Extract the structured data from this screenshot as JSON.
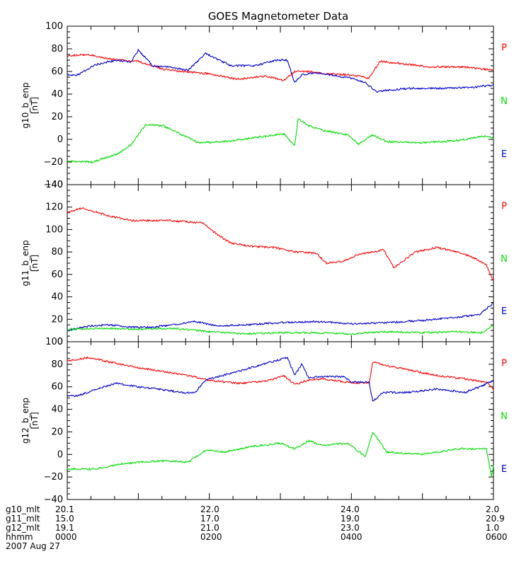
{
  "chart_data": {
    "type": "line",
    "title": "GOES Magnetometer Data",
    "x_range_hours": [
      0,
      6
    ],
    "grid": false,
    "legend": "right-of-each-panel",
    "colors": {
      "P": "#ff0000",
      "N": "#00dd00",
      "E": "#0000cc"
    },
    "panels": [
      {
        "ylabel": "g10_b_enp",
        "units": "[nT]",
        "ylim": [
          -40,
          100
        ],
        "yticks": [
          "−40",
          "−20",
          "0",
          "20",
          "40",
          "60",
          "80",
          "100"
        ],
        "ytick_values": [
          -40,
          -20,
          0,
          20,
          40,
          60,
          80,
          100
        ],
        "series": [
          {
            "name": "P",
            "x": [
              0.0,
              0.3,
              0.6,
              1.0,
              1.35,
              1.6,
              2.0,
              2.4,
              2.8,
              3.05,
              3.2,
              3.4,
              3.6,
              4.0,
              4.25,
              4.4,
              4.7,
              5.1,
              5.6,
              6.0
            ],
            "y": [
              74,
              75,
              71,
              69,
              62,
              60,
              58,
              53,
              56,
              52,
              60,
              60,
              58,
              57,
              54,
              69,
              67,
              64,
              64,
              61
            ]
          },
          {
            "name": "N",
            "x": [
              0.0,
              0.35,
              0.7,
              0.9,
              1.1,
              1.35,
              1.55,
              1.85,
              2.2,
              2.7,
              3.05,
              3.2,
              3.25,
              3.4,
              3.6,
              3.95,
              4.1,
              4.3,
              4.5,
              5.0,
              5.5,
              5.85,
              6.0
            ],
            "y": [
              -19,
              -20,
              -13,
              -5,
              13,
              12,
              6,
              -3,
              -2,
              2,
              5,
              -6,
              18,
              12,
              8,
              4,
              -4,
              4,
              -2,
              -3,
              -1,
              3,
              1
            ]
          },
          {
            "name": "E",
            "x": [
              0.0,
              0.15,
              0.4,
              0.7,
              0.9,
              1.0,
              1.2,
              1.4,
              1.7,
              1.95,
              2.3,
              2.65,
              2.95,
              3.1,
              3.2,
              3.3,
              3.5,
              3.7,
              4.0,
              4.2,
              4.35,
              4.45,
              4.8,
              5.3,
              5.7,
              6.0
            ],
            "y": [
              57,
              57,
              66,
              70,
              68,
              79,
              65,
              64,
              61,
              76,
              65,
              65,
              70,
              70,
              50,
              57,
              59,
              57,
              54,
              50,
              42,
              43,
              45,
              45,
              46,
              48
            ]
          }
        ]
      },
      {
        "ylabel": "g11_b_enp",
        "units": "[nT]",
        "ylim": [
          0,
          140
        ],
        "yticks": [
          "0",
          "20",
          "40",
          "60",
          "80",
          "100",
          "120",
          "140"
        ],
        "ytick_values": [
          0,
          20,
          40,
          60,
          80,
          100,
          120,
          140
        ],
        "series": [
          {
            "name": "P",
            "x": [
              0.0,
              0.2,
              0.6,
              0.9,
              1.4,
              1.9,
              2.1,
              2.3,
              2.6,
              2.9,
              3.2,
              3.5,
              3.65,
              3.9,
              4.1,
              4.3,
              4.45,
              4.6,
              4.9,
              5.2,
              5.5,
              5.75,
              5.9,
              6.0
            ],
            "y": [
              115,
              119,
              112,
              108,
              108,
              106,
              96,
              88,
              85,
              84,
              80,
              79,
              70,
              72,
              78,
              80,
              82,
              66,
              80,
              84,
              80,
              74,
              68,
              54
            ]
          },
          {
            "name": "E",
            "x": [
              0.0,
              0.3,
              0.6,
              0.9,
              1.2,
              1.5,
              1.8,
              2.1,
              2.5,
              3.0,
              3.5,
              4.0,
              4.5,
              5.0,
              5.5,
              5.8,
              5.95,
              6.0
            ],
            "y": [
              10,
              14,
              15,
              13,
              13,
              15,
              18,
              14,
              15,
              17,
              18,
              16,
              17,
              19,
              22,
              24,
              32,
              34
            ]
          },
          {
            "name": "N",
            "x": [
              0.0,
              0.5,
              1.0,
              1.5,
              2.0,
              2.5,
              3.0,
              3.5,
              4.0,
              4.5,
              5.0,
              5.5,
              5.85,
              6.0
            ],
            "y": [
              11,
              12,
              11,
              12,
              9,
              7,
              8,
              8,
              7,
              9,
              8,
              9,
              8,
              15
            ]
          }
        ]
      },
      {
        "ylabel": "g12_b_enp",
        "units": "[nT]",
        "ylim": [
          -40,
          100
        ],
        "yticks": [
          "−40",
          "−20",
          "0",
          "20",
          "40",
          "60",
          "80",
          "100"
        ],
        "ytick_values": [
          -40,
          -20,
          0,
          20,
          40,
          60,
          80,
          100
        ],
        "series": [
          {
            "name": "P",
            "x": [
              0.0,
              0.3,
              0.6,
              1.0,
              1.4,
              1.7,
              2.0,
              2.4,
              2.8,
              3.05,
              3.2,
              3.4,
              3.6,
              3.95,
              4.25,
              4.3,
              4.5,
              4.8,
              5.2,
              5.6,
              5.9,
              6.0
            ],
            "y": [
              83,
              86,
              82,
              77,
              73,
              70,
              66,
              63,
              65,
              70,
              62,
              66,
              67,
              64,
              63,
              82,
              79,
              75,
              70,
              67,
              64,
              58
            ]
          },
          {
            "name": "E",
            "x": [
              0.0,
              0.15,
              0.4,
              0.7,
              1.0,
              1.3,
              1.6,
              1.8,
              1.95,
              2.3,
              2.7,
              3.1,
              3.2,
              3.3,
              3.4,
              3.55,
              3.9,
              4.0,
              4.25,
              4.3,
              4.45,
              4.8,
              5.2,
              5.6,
              5.85,
              6.0
            ],
            "y": [
              52,
              52,
              58,
              63,
              60,
              58,
              55,
              55,
              66,
              72,
              79,
              86,
              70,
              80,
              68,
              69,
              69,
              64,
              64,
              47,
              55,
              55,
              58,
              55,
              61,
              66
            ]
          },
          {
            "name": "N",
            "x": [
              0.0,
              0.4,
              0.8,
              1.2,
              1.5,
              1.7,
              1.95,
              2.2,
              2.6,
              3.0,
              3.2,
              3.4,
              3.6,
              3.95,
              4.2,
              4.3,
              4.5,
              5.0,
              5.5,
              5.9,
              5.97,
              6.0
            ],
            "y": [
              -13,
              -13,
              -8,
              -6,
              -6,
              -7,
              4,
              2,
              7,
              10,
              5,
              12,
              8,
              10,
              -2,
              20,
              2,
              0,
              5,
              5,
              -20,
              -10
            ]
          }
        ]
      }
    ]
  },
  "footer": {
    "rows": [
      {
        "label": "g10_mlt",
        "values": [
          "20.1",
          "22.0",
          "24.0",
          "2.0"
        ]
      },
      {
        "label": "g11_mlt",
        "values": [
          "15.0",
          "17.0",
          "19.0",
          "20.9"
        ]
      },
      {
        "label": "g12_mlt",
        "values": [
          "19.1",
          "21.0",
          "23.0",
          "1.0"
        ]
      },
      {
        "label": "hhmm",
        "values": [
          "0000",
          "0200",
          "0400",
          "0600"
        ]
      }
    ],
    "date": "2007 Aug 27"
  }
}
